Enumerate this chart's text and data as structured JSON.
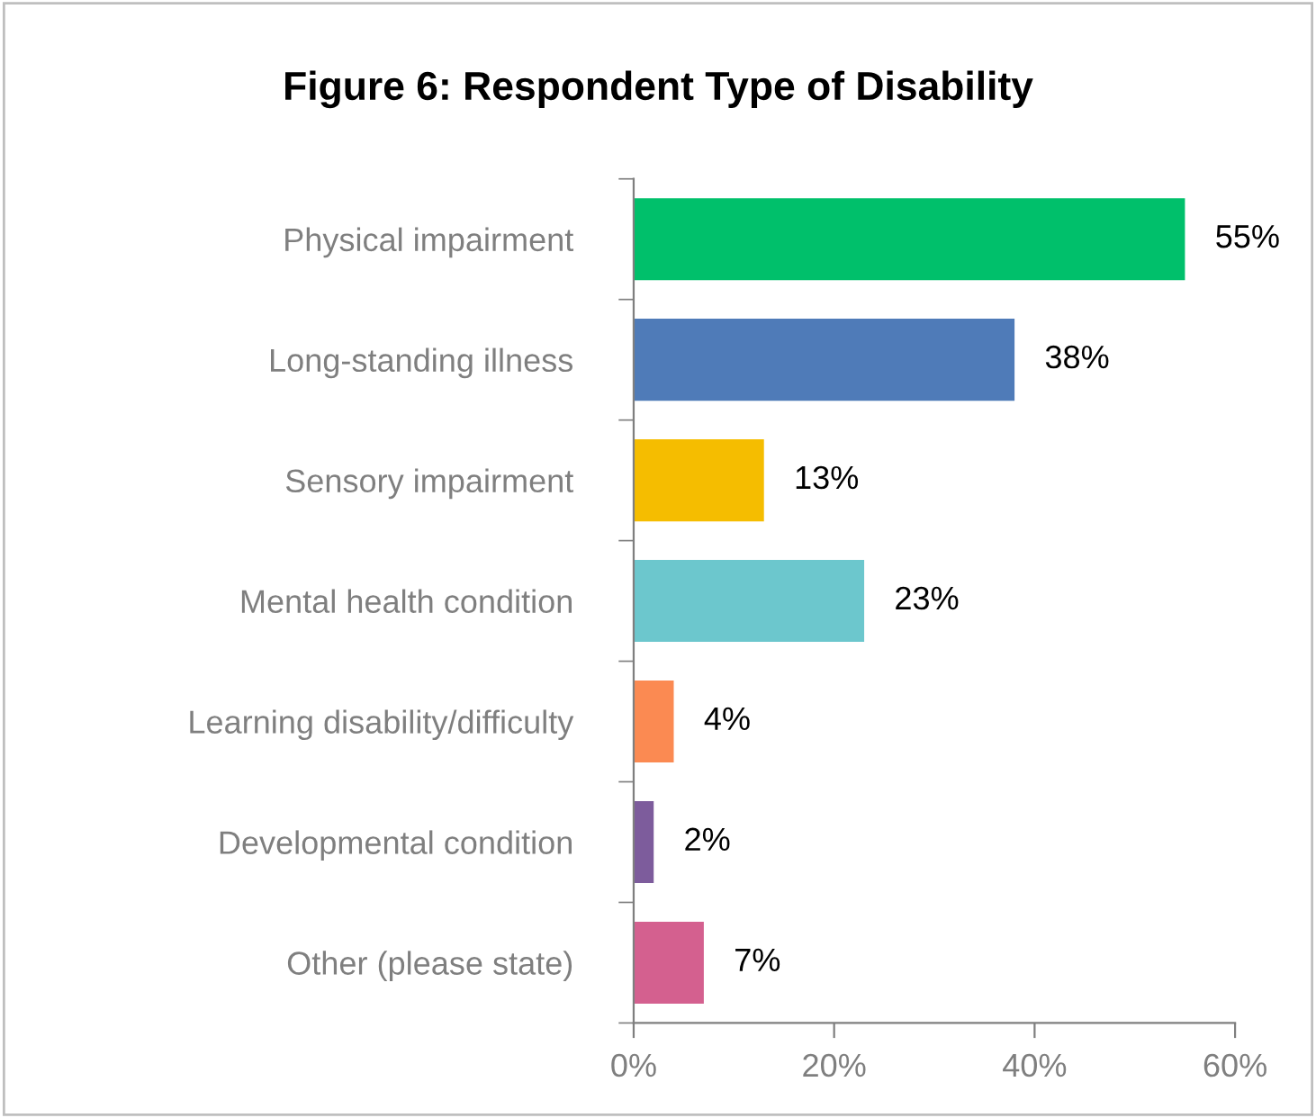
{
  "chart_data": {
    "type": "bar",
    "orientation": "horizontal",
    "title": "Figure 6: Respondent Type of Disability",
    "categories": [
      "Physical impairment",
      "Long-standing illness",
      "Sensory impairment",
      "Mental health condition",
      "Learning disability/difficulty",
      "Developmental condition",
      "Other (please state)"
    ],
    "values": [
      55,
      38,
      13,
      23,
      4,
      2,
      7
    ],
    "value_labels": [
      "55%",
      "38%",
      "13%",
      "23%",
      "4%",
      "2%",
      "7%"
    ],
    "colors": [
      "#00c06b",
      "#4f7bb8",
      "#f5bd00",
      "#6cc7cd",
      "#fb8a52",
      "#7d5c9c",
      "#d4608f"
    ],
    "xlim": [
      0,
      60
    ],
    "xticks": [
      {
        "value": 0,
        "label": "0%"
      },
      {
        "value": 20,
        "label": "20%"
      },
      {
        "value": 40,
        "label": "40%"
      },
      {
        "value": 60,
        "label": "60%"
      }
    ],
    "grid": false,
    "legend": false
  }
}
